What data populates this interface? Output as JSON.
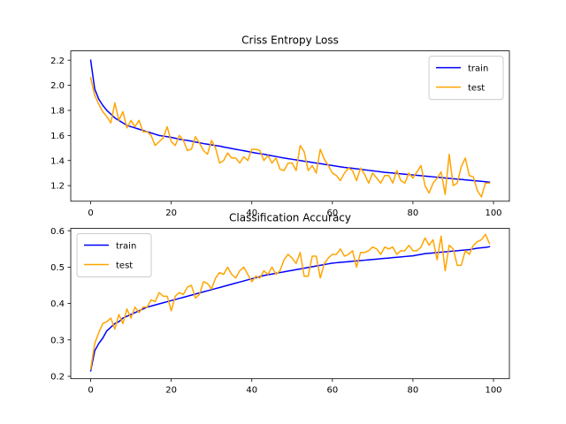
{
  "chart_data": [
    {
      "type": "line",
      "title": "Criss Entropy Loss",
      "xlabel": "",
      "ylabel": "",
      "xlim": [
        -4.95,
        103.95
      ],
      "ylim": [
        1.0755,
        2.2745
      ],
      "xticks": [
        0,
        20,
        40,
        60,
        80,
        100
      ],
      "yticks": [
        1.2,
        1.4,
        1.6,
        1.8,
        2.0,
        2.2
      ],
      "xtick_labels": [
        "0",
        "20",
        "40",
        "60",
        "80",
        "100"
      ],
      "ytick_labels": [
        "1.2",
        "1.4",
        "1.6",
        "1.8",
        "2.0",
        "2.2"
      ],
      "legend_position": "upper-right",
      "grid": false,
      "series": [
        {
          "name": "train",
          "color": "#0000ff",
          "x": [
            0,
            1,
            2,
            3,
            4,
            5,
            6,
            7,
            8,
            9,
            10,
            11,
            12,
            13,
            14,
            15,
            16,
            17,
            18,
            19,
            20,
            21,
            22,
            23,
            24,
            25,
            26,
            27,
            28,
            29,
            30,
            31,
            32,
            33,
            34,
            35,
            36,
            37,
            38,
            39,
            40,
            41,
            42,
            43,
            44,
            45,
            46,
            47,
            48,
            49,
            50,
            51,
            52,
            53,
            54,
            55,
            56,
            57,
            58,
            59,
            60,
            61,
            62,
            63,
            64,
            65,
            66,
            67,
            68,
            69,
            70,
            71,
            72,
            73,
            74,
            75,
            76,
            77,
            78,
            79,
            80,
            81,
            82,
            83,
            84,
            85,
            86,
            87,
            88,
            89,
            90,
            91,
            92,
            93,
            94,
            95,
            96,
            97,
            98,
            99
          ],
          "values": [
            2.2,
            1.97,
            1.89,
            1.84,
            1.8,
            1.77,
            1.74,
            1.72,
            1.7,
            1.68,
            1.67,
            1.66,
            1.65,
            1.64,
            1.63,
            1.62,
            1.61,
            1.6,
            1.595,
            1.59,
            1.585,
            1.578,
            1.57,
            1.565,
            1.56,
            1.555,
            1.548,
            1.542,
            1.535,
            1.53,
            1.525,
            1.52,
            1.515,
            1.508,
            1.502,
            1.496,
            1.49,
            1.484,
            1.478,
            1.472,
            1.466,
            1.46,
            1.455,
            1.45,
            1.444,
            1.438,
            1.432,
            1.426,
            1.42,
            1.415,
            1.41,
            1.405,
            1.4,
            1.395,
            1.39,
            1.385,
            1.38,
            1.375,
            1.37,
            1.365,
            1.36,
            1.355,
            1.35,
            1.345,
            1.342,
            1.338,
            1.334,
            1.33,
            1.326,
            1.322,
            1.318,
            1.314,
            1.31,
            1.306,
            1.303,
            1.3,
            1.297,
            1.294,
            1.291,
            1.288,
            1.285,
            1.282,
            1.279,
            1.276,
            1.273,
            1.27,
            1.267,
            1.264,
            1.261,
            1.258,
            1.255,
            1.252,
            1.249,
            1.246,
            1.243,
            1.24,
            1.237,
            1.234,
            1.231,
            1.228
          ]
        },
        {
          "name": "test",
          "color": "#ffa500",
          "x": [
            0,
            1,
            2,
            3,
            4,
            5,
            6,
            7,
            8,
            9,
            10,
            11,
            12,
            13,
            14,
            15,
            16,
            17,
            18,
            19,
            20,
            21,
            22,
            23,
            24,
            25,
            26,
            27,
            28,
            29,
            30,
            31,
            32,
            33,
            34,
            35,
            36,
            37,
            38,
            39,
            40,
            41,
            42,
            43,
            44,
            45,
            46,
            47,
            48,
            49,
            50,
            51,
            52,
            53,
            54,
            55,
            56,
            57,
            58,
            59,
            60,
            61,
            62,
            63,
            64,
            65,
            66,
            67,
            68,
            69,
            70,
            71,
            72,
            73,
            74,
            75,
            76,
            77,
            78,
            79,
            80,
            81,
            82,
            83,
            84,
            85,
            86,
            87,
            88,
            89,
            90,
            91,
            92,
            93,
            94,
            95,
            96,
            97,
            98,
            99
          ],
          "values": [
            2.06,
            1.92,
            1.85,
            1.79,
            1.75,
            1.7,
            1.86,
            1.72,
            1.79,
            1.66,
            1.72,
            1.67,
            1.72,
            1.63,
            1.63,
            1.6,
            1.52,
            1.55,
            1.58,
            1.67,
            1.55,
            1.52,
            1.6,
            1.56,
            1.48,
            1.49,
            1.59,
            1.54,
            1.48,
            1.45,
            1.56,
            1.5,
            1.38,
            1.4,
            1.46,
            1.42,
            1.42,
            1.38,
            1.43,
            1.4,
            1.49,
            1.49,
            1.48,
            1.4,
            1.44,
            1.38,
            1.42,
            1.33,
            1.32,
            1.38,
            1.38,
            1.32,
            1.52,
            1.47,
            1.32,
            1.36,
            1.3,
            1.49,
            1.41,
            1.36,
            1.3,
            1.28,
            1.24,
            1.3,
            1.34,
            1.32,
            1.24,
            1.34,
            1.29,
            1.22,
            1.3,
            1.26,
            1.22,
            1.28,
            1.28,
            1.22,
            1.32,
            1.24,
            1.22,
            1.3,
            1.26,
            1.31,
            1.36,
            1.2,
            1.14,
            1.22,
            1.26,
            1.31,
            1.13,
            1.45,
            1.2,
            1.22,
            1.35,
            1.42,
            1.28,
            1.27,
            1.16,
            1.11,
            1.22,
            1.22
          ]
        }
      ]
    },
    {
      "type": "line",
      "title": "Classification Accuracy",
      "xlabel": "",
      "ylabel": "",
      "xlim": [
        -4.95,
        103.95
      ],
      "ylim": [
        0.1935,
        0.6065
      ],
      "xticks": [
        0,
        20,
        40,
        60,
        80,
        100
      ],
      "yticks": [
        0.2,
        0.3,
        0.4,
        0.5,
        0.6
      ],
      "xtick_labels": [
        "0",
        "20",
        "40",
        "60",
        "80",
        "100"
      ],
      "ytick_labels": [
        "0.2",
        "0.3",
        "0.4",
        "0.5",
        "0.6"
      ],
      "legend_position": "upper-left",
      "grid": false,
      "series": [
        {
          "name": "train",
          "color": "#0000ff",
          "x": [
            0,
            1,
            2,
            3,
            4,
            5,
            6,
            7,
            8,
            9,
            10,
            11,
            12,
            13,
            14,
            15,
            16,
            17,
            18,
            19,
            20,
            21,
            22,
            23,
            24,
            25,
            26,
            27,
            28,
            29,
            30,
            31,
            32,
            33,
            34,
            35,
            36,
            37,
            38,
            39,
            40,
            41,
            42,
            43,
            44,
            45,
            46,
            47,
            48,
            49,
            50,
            51,
            52,
            53,
            54,
            55,
            56,
            57,
            58,
            59,
            60,
            61,
            62,
            63,
            64,
            65,
            66,
            67,
            68,
            69,
            70,
            71,
            72,
            73,
            74,
            75,
            76,
            77,
            78,
            79,
            80,
            81,
            82,
            83,
            84,
            85,
            86,
            87,
            88,
            89,
            90,
            91,
            92,
            93,
            94,
            95,
            96,
            97,
            98,
            99
          ],
          "values": [
            0.215,
            0.27,
            0.29,
            0.305,
            0.325,
            0.335,
            0.345,
            0.35,
            0.36,
            0.365,
            0.37,
            0.375,
            0.38,
            0.385,
            0.39,
            0.393,
            0.396,
            0.399,
            0.402,
            0.405,
            0.408,
            0.411,
            0.414,
            0.417,
            0.42,
            0.423,
            0.426,
            0.429,
            0.432,
            0.435,
            0.438,
            0.441,
            0.444,
            0.447,
            0.45,
            0.453,
            0.456,
            0.459,
            0.462,
            0.465,
            0.468,
            0.471,
            0.474,
            0.477,
            0.479,
            0.481,
            0.483,
            0.485,
            0.487,
            0.489,
            0.491,
            0.493,
            0.495,
            0.497,
            0.499,
            0.501,
            0.503,
            0.505,
            0.507,
            0.509,
            0.511,
            0.512,
            0.513,
            0.514,
            0.515,
            0.516,
            0.517,
            0.518,
            0.519,
            0.52,
            0.521,
            0.522,
            0.523,
            0.524,
            0.525,
            0.526,
            0.527,
            0.528,
            0.529,
            0.53,
            0.531,
            0.533,
            0.535,
            0.537,
            0.538,
            0.539,
            0.54,
            0.541,
            0.542,
            0.543,
            0.544,
            0.545,
            0.546,
            0.547,
            0.548,
            0.55,
            0.552,
            0.553,
            0.554,
            0.556
          ]
        },
        {
          "name": "test",
          "color": "#ffa500",
          "x": [
            0,
            1,
            2,
            3,
            4,
            5,
            6,
            7,
            8,
            9,
            10,
            11,
            12,
            13,
            14,
            15,
            16,
            17,
            18,
            19,
            20,
            21,
            22,
            23,
            24,
            25,
            26,
            27,
            28,
            29,
            30,
            31,
            32,
            33,
            34,
            35,
            36,
            37,
            38,
            39,
            40,
            41,
            42,
            43,
            44,
            45,
            46,
            47,
            48,
            49,
            50,
            51,
            52,
            53,
            54,
            55,
            56,
            57,
            58,
            59,
            60,
            61,
            62,
            63,
            64,
            65,
            66,
            67,
            68,
            69,
            70,
            71,
            72,
            73,
            74,
            75,
            76,
            77,
            78,
            79,
            80,
            81,
            82,
            83,
            84,
            85,
            86,
            87,
            88,
            89,
            90,
            91,
            92,
            93,
            94,
            95,
            96,
            97,
            98,
            99
          ],
          "values": [
            0.22,
            0.29,
            0.32,
            0.345,
            0.35,
            0.36,
            0.33,
            0.37,
            0.345,
            0.385,
            0.36,
            0.39,
            0.375,
            0.39,
            0.39,
            0.41,
            0.405,
            0.43,
            0.42,
            0.42,
            0.38,
            0.42,
            0.43,
            0.425,
            0.445,
            0.45,
            0.415,
            0.425,
            0.46,
            0.455,
            0.44,
            0.47,
            0.485,
            0.48,
            0.5,
            0.48,
            0.47,
            0.49,
            0.5,
            0.48,
            0.46,
            0.475,
            0.47,
            0.49,
            0.48,
            0.5,
            0.48,
            0.49,
            0.52,
            0.535,
            0.525,
            0.51,
            0.54,
            0.475,
            0.475,
            0.53,
            0.53,
            0.47,
            0.51,
            0.525,
            0.535,
            0.535,
            0.55,
            0.53,
            0.535,
            0.545,
            0.5,
            0.54,
            0.54,
            0.545,
            0.555,
            0.55,
            0.535,
            0.555,
            0.55,
            0.555,
            0.535,
            0.545,
            0.545,
            0.56,
            0.545,
            0.545,
            0.555,
            0.58,
            0.56,
            0.575,
            0.52,
            0.585,
            0.49,
            0.56,
            0.55,
            0.505,
            0.505,
            0.545,
            0.535,
            0.56,
            0.57,
            0.575,
            0.59,
            0.565
          ]
        }
      ]
    }
  ]
}
